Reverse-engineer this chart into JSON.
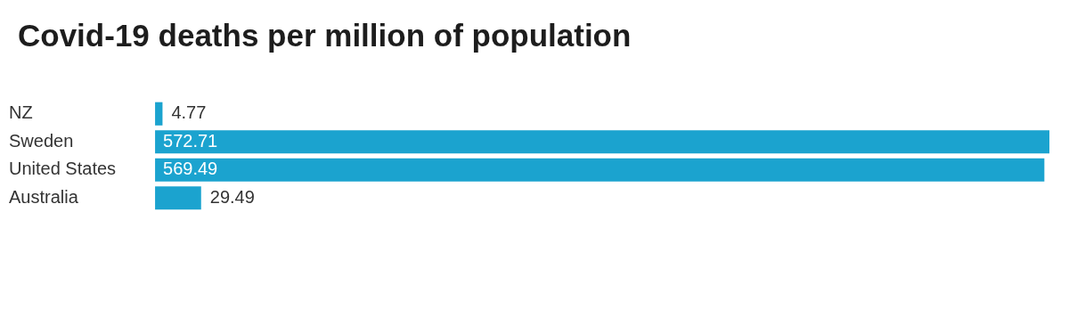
{
  "chart_data": {
    "type": "bar",
    "orientation": "horizontal",
    "title": "Covid-19 deaths per million of population",
    "categories": [
      "NZ",
      "Sweden",
      "United States",
      "Australia"
    ],
    "values": [
      4.77,
      572.71,
      569.49,
      29.49
    ],
    "color": "#1ba3cf",
    "data_labels": true
  }
}
